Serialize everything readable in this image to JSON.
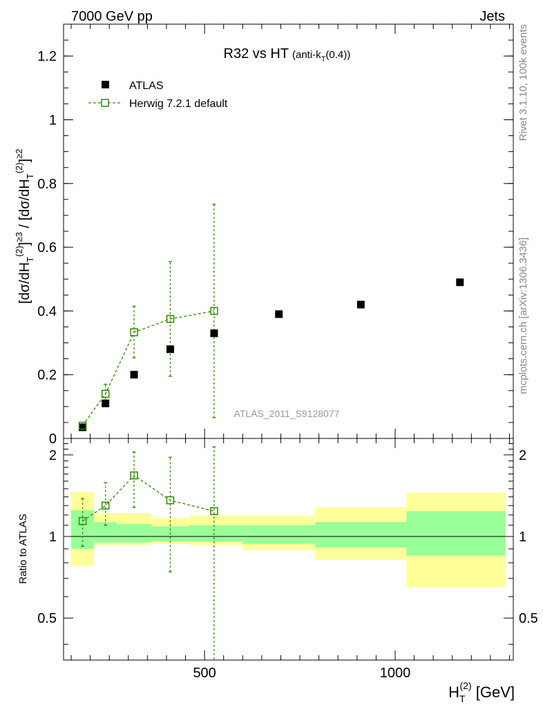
{
  "header": {
    "left": "7000 GeV pp",
    "right": "Jets"
  },
  "side_labels": {
    "rivet": "Rivet 3.1.10,  100k events",
    "mcplots": "mcplots.cern.ch [arXiv:1306.3436]"
  },
  "colors": {
    "data": "#000000",
    "mc": "#2e8b00",
    "band_inner": "#99ff99",
    "band_outer": "#ffff99"
  },
  "chart_data": [
    {
      "type": "scatter",
      "title_main": "R32 vs HT",
      "title_sub": "(anti-k",
      "title_sub_index": "T",
      "title_sub_tail": "(0.4))",
      "ylabel": "[dσ/dH_T^(2)]^≥3 / [dσ/dH_T^(2)]^≥2",
      "watermark": "ATLAS_2011_S9128077",
      "xlim": [
        130,
        1310
      ],
      "ylim": [
        0,
        1.3
      ],
      "yticks": [
        0,
        0.2,
        0.4,
        0.6,
        0.8,
        1,
        1.2
      ],
      "ytick_labels": [
        "0",
        "0.2",
        "0.4",
        "0.6",
        "0.8",
        "1",
        "1.2"
      ],
      "legend_position": "top-left",
      "series": [
        {
          "name": "ATLAS",
          "marker": "filled-square",
          "x": [
            180,
            240,
            315,
            410,
            525,
            695,
            910,
            1170
          ],
          "y": [
            0.035,
            0.11,
            0.2,
            0.28,
            0.33,
            0.39,
            0.42,
            0.49
          ]
        },
        {
          "name": "Herwig 7.2.1 default",
          "marker": "open-square",
          "x": [
            180,
            240,
            315,
            410,
            525
          ],
          "y": [
            0.04,
            0.14,
            0.333,
            0.375,
            0.4
          ],
          "yerr_low": [
            0.005,
            0.03,
            0.08,
            0.18,
            0.335
          ],
          "yerr_high": [
            0.005,
            0.03,
            0.082,
            0.18,
            0.335
          ]
        }
      ]
    },
    {
      "type": "scatter",
      "ylabel": "Ratio to ATLAS",
      "xlabel": "H_T^(2) [GeV]",
      "xlim": [
        130,
        1310
      ],
      "ylim": [
        0.35,
        2.3
      ],
      "yscale": "log",
      "xticks": [
        500,
        1000
      ],
      "xtick_labels": [
        "500",
        "1000"
      ],
      "yticks": [
        0.5,
        1,
        2
      ],
      "ytick_labels": [
        "0.5",
        "1",
        "2"
      ],
      "reference_line": 1,
      "bands": [
        {
          "x0": 150,
          "x1": 210,
          "inner_lo": 0.9,
          "inner_hi": 1.25,
          "outer_lo": 0.78,
          "outer_hi": 1.46
        },
        {
          "x0": 210,
          "x1": 270,
          "inner_lo": 0.95,
          "inner_hi": 1.13,
          "outer_lo": 0.93,
          "outer_hi": 1.22
        },
        {
          "x0": 270,
          "x1": 360,
          "inner_lo": 0.95,
          "inner_hi": 1.11,
          "outer_lo": 0.93,
          "outer_hi": 1.22
        },
        {
          "x0": 360,
          "x1": 460,
          "inner_lo": 0.96,
          "inner_hi": 1.09,
          "outer_lo": 0.94,
          "outer_hi": 1.17
        },
        {
          "x0": 460,
          "x1": 600,
          "inner_lo": 0.96,
          "inner_hi": 1.1,
          "outer_lo": 0.93,
          "outer_hi": 1.19
        },
        {
          "x0": 600,
          "x1": 790,
          "inner_lo": 0.94,
          "inner_hi": 1.1,
          "outer_lo": 0.89,
          "outer_hi": 1.19
        },
        {
          "x0": 790,
          "x1": 1030,
          "inner_lo": 0.91,
          "inner_hi": 1.13,
          "outer_lo": 0.82,
          "outer_hi": 1.28
        },
        {
          "x0": 1030,
          "x1": 1290,
          "inner_lo": 0.85,
          "inner_hi": 1.24,
          "outer_lo": 0.65,
          "outer_hi": 1.45
        }
      ],
      "series": [
        {
          "name": "Herwig 7.2.1 default",
          "marker": "open-square",
          "x": [
            180,
            240,
            315,
            410,
            525
          ],
          "y": [
            1.14,
            1.3,
            1.68,
            1.36,
            1.24
          ],
          "yerr_low": [
            0.22,
            0.2,
            0.4,
            0.62,
            0.9
          ],
          "yerr_high": [
            0.24,
            0.28,
            0.37,
            0.6,
            0.9
          ]
        }
      ]
    }
  ]
}
